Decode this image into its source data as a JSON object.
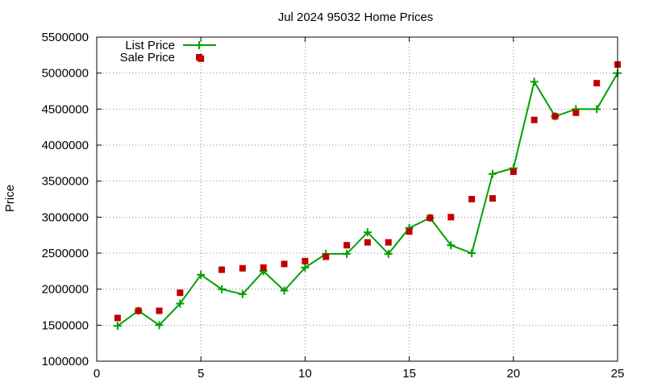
{
  "chart_data": {
    "type": "line",
    "title": "Jul 2024 95032 Home Prices",
    "xlabel": "",
    "ylabel": "Price",
    "xlim": [
      0,
      25
    ],
    "ylim": [
      1000000,
      5500000
    ],
    "x_ticks": [
      0,
      5,
      10,
      15,
      20,
      25
    ],
    "y_ticks": [
      1000000,
      1500000,
      2000000,
      2500000,
      3000000,
      3500000,
      4000000,
      4500000,
      5000000,
      5500000
    ],
    "grid": true,
    "legend_position": "top-left",
    "colors": {
      "list": "#00a000",
      "sale": "#c00000"
    },
    "series": [
      {
        "name": "List Price",
        "style": "line-with-plus-markers",
        "x": [
          1,
          2,
          3,
          4,
          5,
          6,
          7,
          8,
          9,
          10,
          11,
          12,
          13,
          14,
          15,
          16,
          17,
          18,
          19,
          20,
          21,
          22,
          23,
          24,
          25
        ],
        "values": [
          1490000,
          1700000,
          1500000,
          1800000,
          2200000,
          2000000,
          1930000,
          2250000,
          1980000,
          2300000,
          2490000,
          2490000,
          2790000,
          2490000,
          2850000,
          2990000,
          2610000,
          2500000,
          3600000,
          3680000,
          4880000,
          4400000,
          4500000,
          4500000,
          5000000
        ]
      },
      {
        "name": "Sale Price",
        "style": "square-markers",
        "x": [
          1,
          2,
          3,
          4,
          5,
          6,
          7,
          8,
          9,
          10,
          11,
          12,
          13,
          14,
          15,
          16,
          17,
          18,
          19,
          20,
          21,
          22,
          23,
          24,
          25
        ],
        "values": [
          1600000,
          1700000,
          1700000,
          1950000,
          5200000,
          2270000,
          2290000,
          2300000,
          2350000,
          2390000,
          2450000,
          2610000,
          2650000,
          2650000,
          2800000,
          2990000,
          3000000,
          3250000,
          3260000,
          3630000,
          4350000,
          4400000,
          4450000,
          4860000,
          5120000
        ]
      }
    ]
  }
}
